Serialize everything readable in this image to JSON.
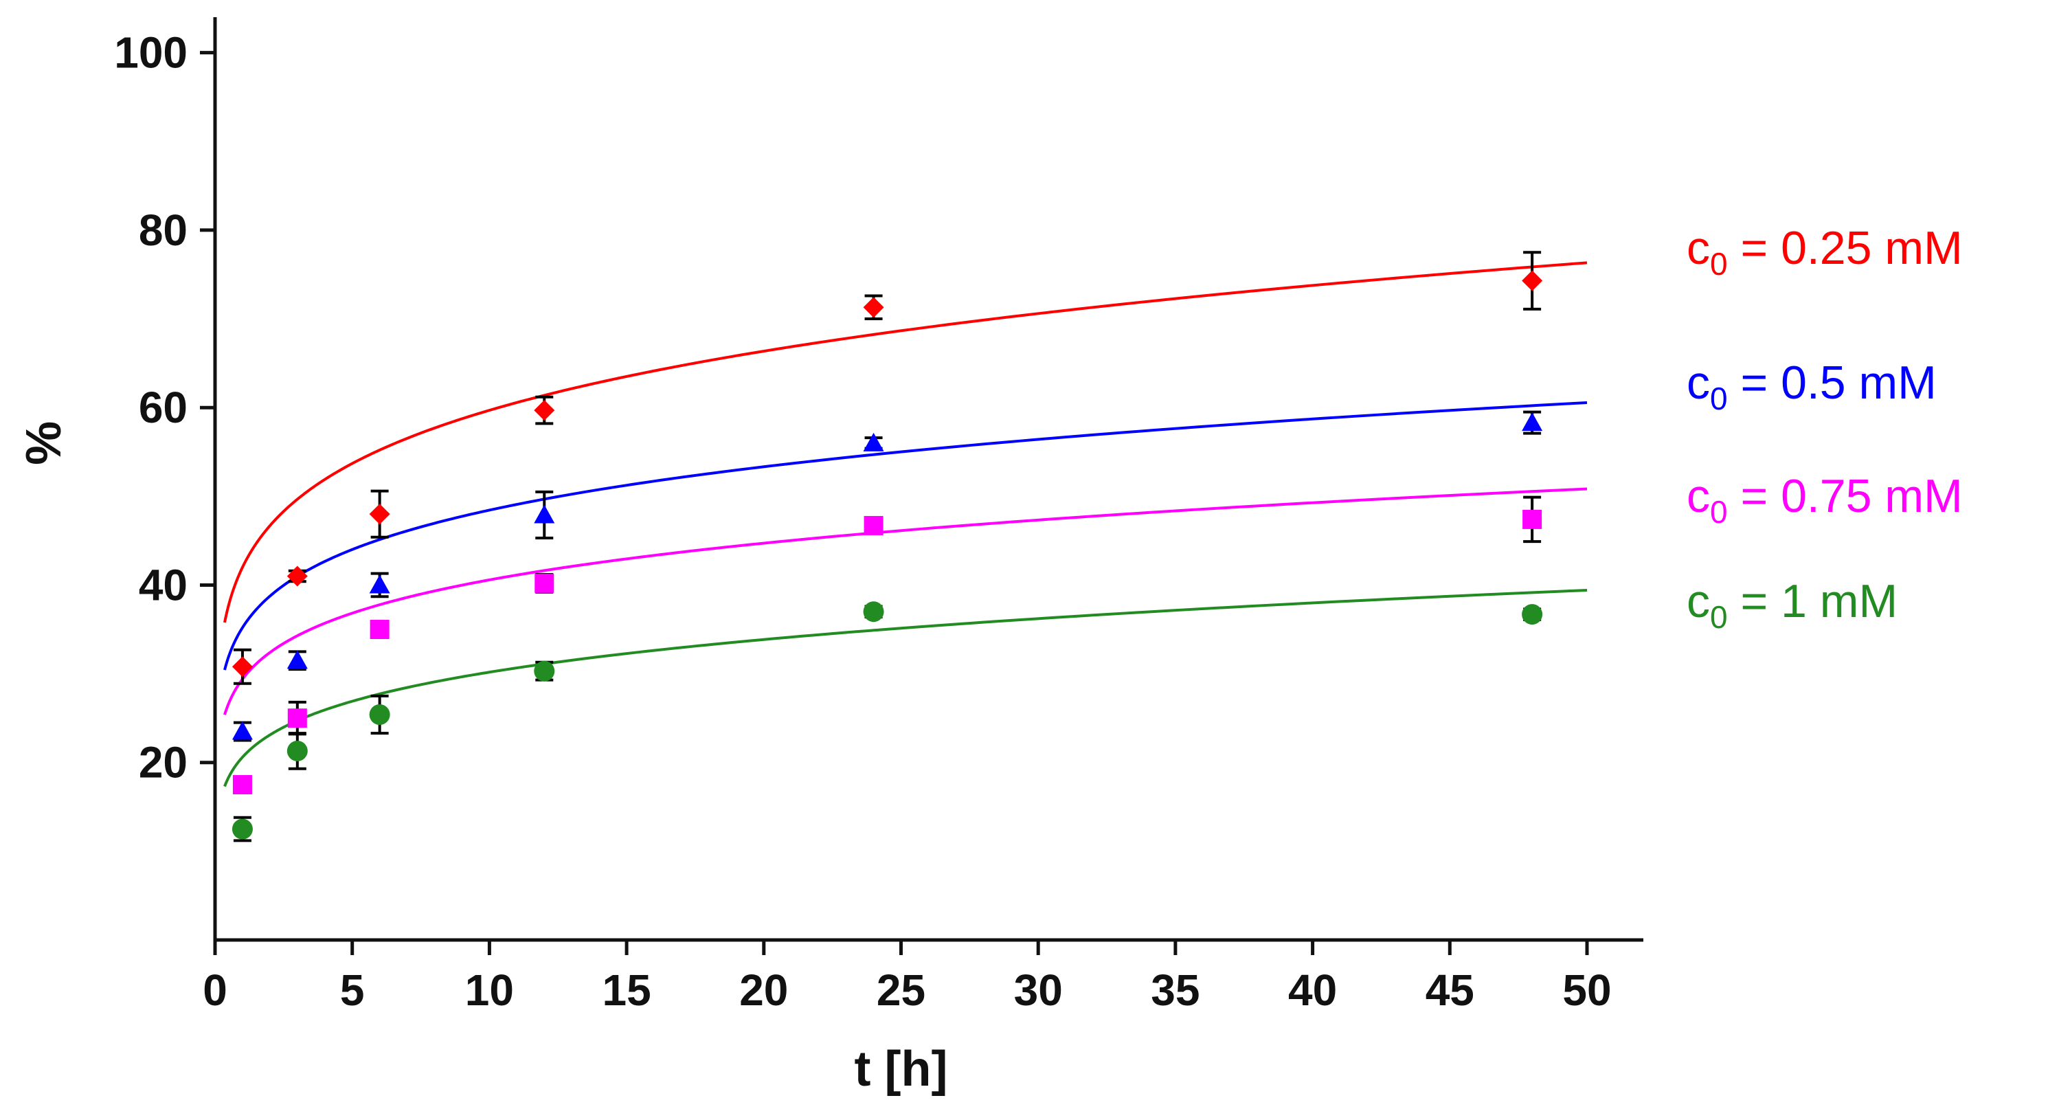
{
  "chart_data": {
    "type": "scatter",
    "title": "",
    "xlabel": "t [h]",
    "ylabel": "%",
    "xlim": [
      0,
      52
    ],
    "ylim": [
      0,
      104
    ],
    "xticks": [
      0,
      5,
      10,
      15,
      20,
      25,
      30,
      35,
      40,
      45,
      50
    ],
    "yticks": [
      20,
      40,
      60,
      80,
      100
    ],
    "x": [
      1,
      3,
      6,
      12,
      24,
      48
    ],
    "legend_position": "right",
    "series": [
      {
        "name": "c0 = 0.25 mM",
        "legend_main": "c",
        "legend_sub": "0",
        "legend_rest": " = 0.25 mM",
        "color": "#ff0000",
        "marker": "diamond",
        "values": [
          30.8,
          41.0,
          48.0,
          59.7,
          71.3,
          74.3
        ],
        "errors": [
          1.9,
          0.6,
          2.6,
          1.5,
          1.3,
          3.2
        ],
        "fit_a": 42.0,
        "fit_b": 0.1527
      },
      {
        "name": "c0 = 0.5 mM",
        "legend_main": "c",
        "legend_sub": "0",
        "legend_rest": " = 0.5 mM",
        "color": "#0000ff",
        "marker": "triangle",
        "values": [
          23.5,
          31.5,
          40.0,
          47.9,
          56.0,
          58.3
        ],
        "errors": [
          1.0,
          1.0,
          1.3,
          2.6,
          0.6,
          1.2
        ],
        "fit_a": 35.2,
        "fit_b": 0.1387
      },
      {
        "name": "c0 = 0.75 mM",
        "legend_main": "c",
        "legend_sub": "0",
        "legend_rest": " = 0.75 mM",
        "color": "#ff00ff",
        "marker": "square",
        "values": [
          17.5,
          25.0,
          35.0,
          40.2,
          46.7,
          47.4
        ],
        "errors": [
          0.8,
          1.8,
          0.8,
          1.0,
          0.8,
          2.5
        ],
        "fit_a": 29.4,
        "fit_b": 0.14
      },
      {
        "name": "c0 = 1 mM",
        "legend_main": "c",
        "legend_sub": "0",
        "legend_rest": " = 1 mM",
        "color": "#228b22",
        "marker": "circle",
        "values": [
          12.5,
          21.3,
          25.4,
          30.3,
          37.0,
          36.7
        ],
        "errors": [
          1.3,
          2.0,
          2.1,
          1.0,
          0.6,
          0.6
        ],
        "fit_a": 20.6,
        "fit_b": 0.1659
      }
    ]
  }
}
